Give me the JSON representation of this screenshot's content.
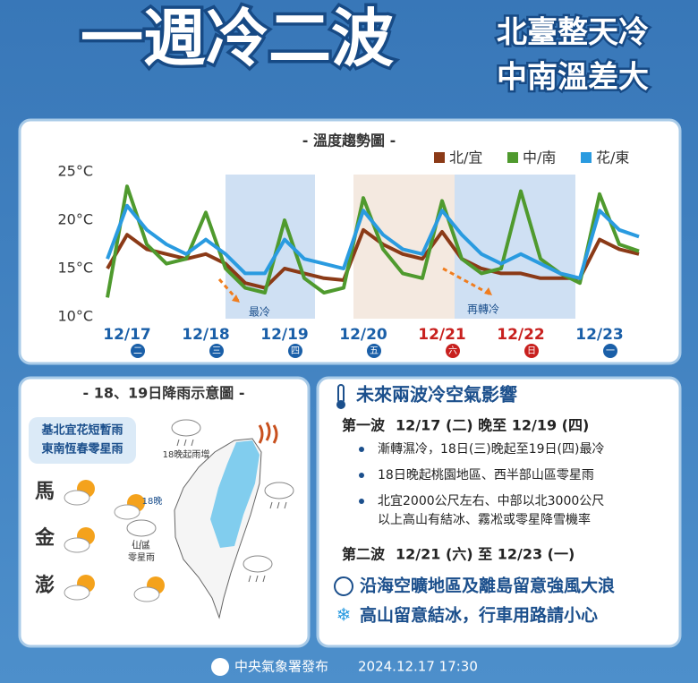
{
  "header": {
    "title": "一週冷二波",
    "subtitle_lines": [
      "北臺整天冷",
      "中南溫差大"
    ]
  },
  "chart_data": {
    "type": "line",
    "title": "- 溫度趨勢圖 -",
    "categories": [
      null,
      "12/17",
      null,
      null,
      null,
      "12/18",
      null,
      null,
      null,
      "12/19",
      null,
      null,
      null,
      "12/20",
      null,
      null,
      null,
      "12/21",
      null,
      null,
      null,
      "12/22",
      null,
      null,
      null,
      "12/23",
      null,
      null
    ],
    "weekdays": [
      null,
      "二",
      null,
      null,
      null,
      "三",
      null,
      null,
      null,
      "四",
      null,
      null,
      null,
      "五",
      null,
      null,
      null,
      "六",
      null,
      null,
      null,
      "日",
      null,
      null,
      null,
      "一",
      null,
      null
    ],
    "category_colors": [
      null,
      "#1a5fa8",
      null,
      null,
      null,
      "#1a5fa8",
      null,
      null,
      null,
      "#1a5fa8",
      null,
      null,
      null,
      "#1a5fa8",
      null,
      null,
      null,
      "#c8201e",
      null,
      null,
      null,
      "#c8201e",
      null,
      null,
      null,
      "#1a5fa8",
      null,
      null
    ],
    "series": [
      {
        "name": "北/宜",
        "color": "#8b3a17",
        "values": [
          15,
          18.5,
          17,
          16.5,
          16,
          16.5,
          15.5,
          13.5,
          13,
          15,
          14.5,
          14,
          13.8,
          19,
          17.5,
          16.5,
          16,
          18.8,
          16,
          15,
          14.5,
          14.5,
          14,
          14,
          14,
          18,
          17,
          16.5
        ]
      },
      {
        "name": "中/南",
        "color": "#4f9a2e",
        "values": [
          12,
          23.5,
          17.5,
          15.5,
          16,
          20.8,
          15,
          13,
          12.5,
          20,
          14,
          12.5,
          13,
          22.3,
          17,
          14.5,
          14,
          22,
          16,
          14.5,
          15,
          23,
          16,
          14.5,
          13.5,
          22.7,
          17.5,
          16.8
        ]
      },
      {
        "name": "花/東",
        "color": "#2a9be0",
        "values": [
          16,
          21.5,
          19,
          17.5,
          16.5,
          18,
          16.5,
          14.5,
          14.5,
          18,
          16,
          15.5,
          15,
          21,
          18.5,
          17,
          16.5,
          21,
          18.5,
          16.5,
          15.5,
          16.5,
          15.5,
          14.5,
          14,
          21,
          19,
          18.3
        ]
      }
    ],
    "ylim": [
      10,
      25
    ],
    "yticks": [
      {
        "value": 10,
        "label": "10°C"
      },
      {
        "value": 15,
        "label": "15°C"
      },
      {
        "value": 20,
        "label": "20°C"
      },
      {
        "value": 25,
        "label": "25°C"
      }
    ],
    "legend": "top-right",
    "annotations": [
      {
        "text": "最冷"
      },
      {
        "text": "再轉冷"
      }
    ]
  },
  "rain_map": {
    "title": "- 18、19日降雨示意圖 -",
    "summary_lines": [
      "基北宜花短暫雨",
      "東南恆春零星雨"
    ],
    "labels": [
      "18晚起雨增",
      "18晚"
    ],
    "mountain_lines": [
      "山區",
      "零星雨"
    ],
    "islands": [
      "馬",
      "金",
      "澎"
    ]
  },
  "impacts": {
    "title": "未來兩波冷空氣影響",
    "wave1": {
      "label": "第一波",
      "period": "12/17 (二) 晚至 12/19 (四)",
      "bullets": [
        [
          "漸轉濕冷，18日(三)晚起至19日(四)最冷"
        ],
        [
          "18日晚起桃園地區、西半部山區零星雨"
        ],
        [
          "北宜2000公尺左右、中部以北3000公尺",
          "以上高山有結冰、霧凇或零星降雪機率"
        ]
      ]
    },
    "wave2": {
      "label": "第二波",
      "period": "12/21 (六) 至 12/23 (一)"
    },
    "alerts": [
      "沿海空曠地區及離島留意強風大浪",
      "高山留意結冰，行車用路請小心"
    ]
  },
  "footer": {
    "publisher": "中央氣象署發布",
    "datetime": "2024.12.17 17:30"
  }
}
